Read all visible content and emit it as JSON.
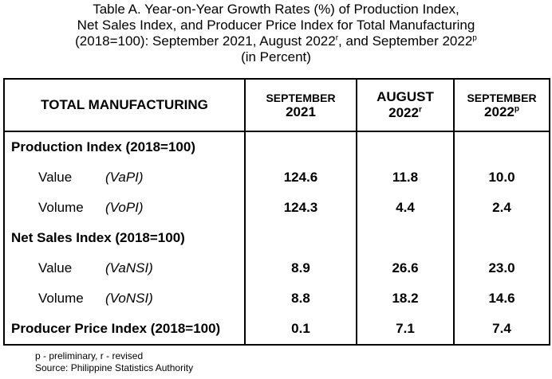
{
  "title": {
    "line1": "Table A. Year-on-Year Growth Rates (%) of Production Index,",
    "line2": "Net Sales Index, and Producer Price Index for Total Manufacturing",
    "line3_pre": "(2018=100): September 2021, August 2022",
    "line3_sup1": "r",
    "line3_mid": ", and September 2022",
    "line3_sup2": "p",
    "line4": "(in Percent)"
  },
  "header": {
    "label": "TOTAL MANUFACTURING",
    "col1_month": "SEPTEMBER",
    "col1_year": "2021",
    "col2_month": "AUGUST",
    "col2_year": "2022",
    "col2_sup": "r",
    "col3_month": "SEPTEMBER",
    "col3_year": "2022",
    "col3_sup": "p"
  },
  "rows": {
    "production": {
      "label": "Production Index (2018=100)"
    },
    "prod_value": {
      "name": "Value",
      "abbr": "(VaPI)",
      "v1": "124.6",
      "v2": "11.8",
      "v3": "10.0"
    },
    "prod_volume": {
      "name": "Volume",
      "abbr": "(VoPI)",
      "v1": "124.3",
      "v2": "4.4",
      "v3": "2.4"
    },
    "netsales": {
      "label": "Net Sales Index (2018=100)"
    },
    "ns_value": {
      "name": "Value",
      "abbr": "(VaNSI)",
      "v1": "8.9",
      "v2": "26.6",
      "v3": "23.0"
    },
    "ns_volume": {
      "name": "Volume",
      "abbr": "(VoNSI)",
      "v1": "8.8",
      "v2": "18.2",
      "v3": "14.6"
    },
    "ppi": {
      "label": "Producer Price Index (2018=100)",
      "v1": "0.1",
      "v2": "7.1",
      "v3": "7.4"
    }
  },
  "footnotes": {
    "line1": "p - preliminary, r - revised",
    "line2": "Source: Philippine Statistics Authority"
  }
}
